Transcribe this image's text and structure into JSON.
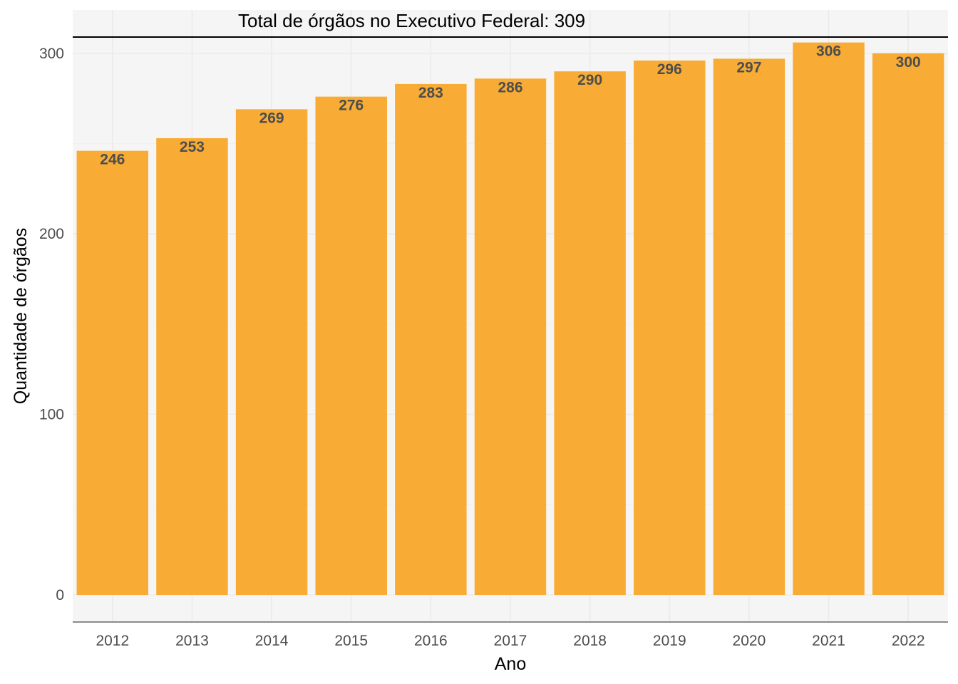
{
  "chart_data": {
    "type": "bar",
    "title": "",
    "xlabel": "Ano",
    "ylabel": "Quantidade de órgãos",
    "categories": [
      "2012",
      "2013",
      "2014",
      "2015",
      "2016",
      "2017",
      "2018",
      "2019",
      "2020",
      "2021",
      "2022"
    ],
    "values": [
      246,
      253,
      269,
      276,
      283,
      286,
      290,
      296,
      297,
      306,
      300
    ],
    "ylim": [
      -15,
      324
    ],
    "yticks": [
      0,
      100,
      200,
      300
    ],
    "grid": true,
    "legend": "none",
    "bar_color": "#F8AC35",
    "panel_background": "#F5F5F5",
    "reference_line": {
      "value": 309,
      "label": "Total de órgãos no Executivo Federal: 309",
      "color": "#000000"
    }
  }
}
